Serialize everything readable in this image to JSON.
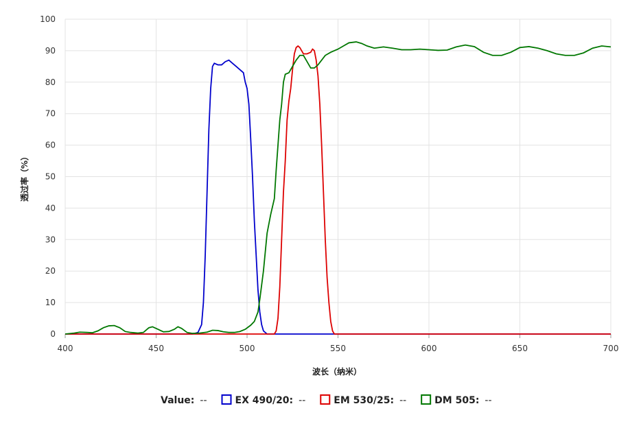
{
  "chart_data": {
    "type": "line",
    "xlabel": "波长（纳米）",
    "ylabel": "透过率（%）",
    "xlim": [
      400,
      700
    ],
    "xticks": [
      400,
      450,
      500,
      550,
      600,
      650,
      700
    ],
    "ylim": [
      0,
      100
    ],
    "yticks": [
      0,
      10,
      20,
      30,
      40,
      50,
      60,
      70,
      80,
      90,
      100
    ],
    "grid": true,
    "legend_label": "Value:",
    "legend_value": "--",
    "legend": "bottom",
    "series": [
      {
        "name": "EX 490/20:",
        "color": "#0000cc",
        "x": [
          400,
          470,
          473,
          475,
          476,
          477,
          478,
          479,
          480,
          481,
          482,
          484,
          486,
          488,
          490,
          492,
          494,
          496,
          498,
          499,
          500,
          501,
          502,
          503,
          504,
          505,
          506,
          507,
          508,
          509,
          511,
          700
        ],
        "values": [
          0,
          0,
          0.5,
          3,
          10,
          25,
          45,
          65,
          78,
          85,
          86,
          85.5,
          85.5,
          86.5,
          87,
          86,
          85,
          84,
          83,
          80,
          78,
          73,
          62,
          50,
          36,
          25,
          14,
          7,
          3,
          1,
          0,
          0
        ]
      },
      {
        "name": "EM 530/25:",
        "color": "#dd0000",
        "x": [
          400,
          515,
          516,
          517,
          518,
          519,
          520,
          521,
          522,
          523,
          524,
          525,
          526,
          527,
          528,
          529,
          530,
          531,
          533,
          535,
          536,
          537,
          538,
          539,
          540,
          541,
          542,
          543,
          544,
          545,
          546,
          547,
          548,
          700
        ],
        "values": [
          0,
          0,
          1,
          5,
          15,
          30,
          45,
          55,
          68,
          74,
          78,
          84,
          89,
          91,
          91.5,
          91,
          90,
          89,
          89,
          89.5,
          90.5,
          90,
          87,
          82,
          73,
          60,
          45,
          30,
          18,
          10,
          4,
          1,
          0,
          0
        ]
      },
      {
        "name": "DM 505:",
        "color": "#007700",
        "x": [
          400,
          405,
          408,
          412,
          415,
          418,
          421,
          424,
          427,
          430,
          433,
          436,
          440,
          443,
          446,
          448,
          451,
          454,
          457,
          460,
          462,
          464,
          467,
          470,
          474,
          478,
          481,
          484,
          487,
          490,
          493,
          496,
          499,
          502,
          504,
          506,
          507,
          509,
          511,
          513,
          515,
          516,
          517,
          518,
          519,
          520,
          521,
          523,
          525,
          527,
          529,
          531,
          533,
          535,
          537,
          539,
          541,
          543,
          546,
          550,
          553,
          556,
          560,
          563,
          566,
          570,
          575,
          580,
          585,
          590,
          595,
          600,
          605,
          610,
          615,
          620,
          625,
          630,
          635,
          640,
          645,
          650,
          655,
          660,
          665,
          670,
          675,
          680,
          685,
          690,
          695,
          700
        ],
        "values": [
          0,
          0.3,
          0.6,
          0.5,
          0.4,
          1,
          2,
          2.6,
          2.7,
          2,
          0.8,
          0.5,
          0.3,
          0.5,
          2,
          2.3,
          1.5,
          0.7,
          0.8,
          1.5,
          2.3,
          1.8,
          0.5,
          0.2,
          0.3,
          0.6,
          1.2,
          1.1,
          0.7,
          0.5,
          0.5,
          0.8,
          1.5,
          2.8,
          4,
          7,
          11,
          20,
          32,
          38,
          43,
          52,
          60,
          68,
          73,
          80,
          82.5,
          83,
          85,
          87,
          88.5,
          88.5,
          86.5,
          84.5,
          84.5,
          85.5,
          87,
          88.5,
          89.5,
          90.5,
          91.5,
          92.5,
          92.8,
          92.3,
          91.5,
          90.8,
          91.2,
          90.8,
          90.3,
          90.3,
          90.5,
          90.3,
          90.1,
          90.2,
          91.2,
          91.8,
          91.3,
          89.5,
          88.5,
          88.5,
          89.5,
          91,
          91.3,
          90.8,
          90,
          89,
          88.5,
          88.5,
          89.3,
          90.8,
          91.5,
          91.2
        ]
      }
    ]
  }
}
